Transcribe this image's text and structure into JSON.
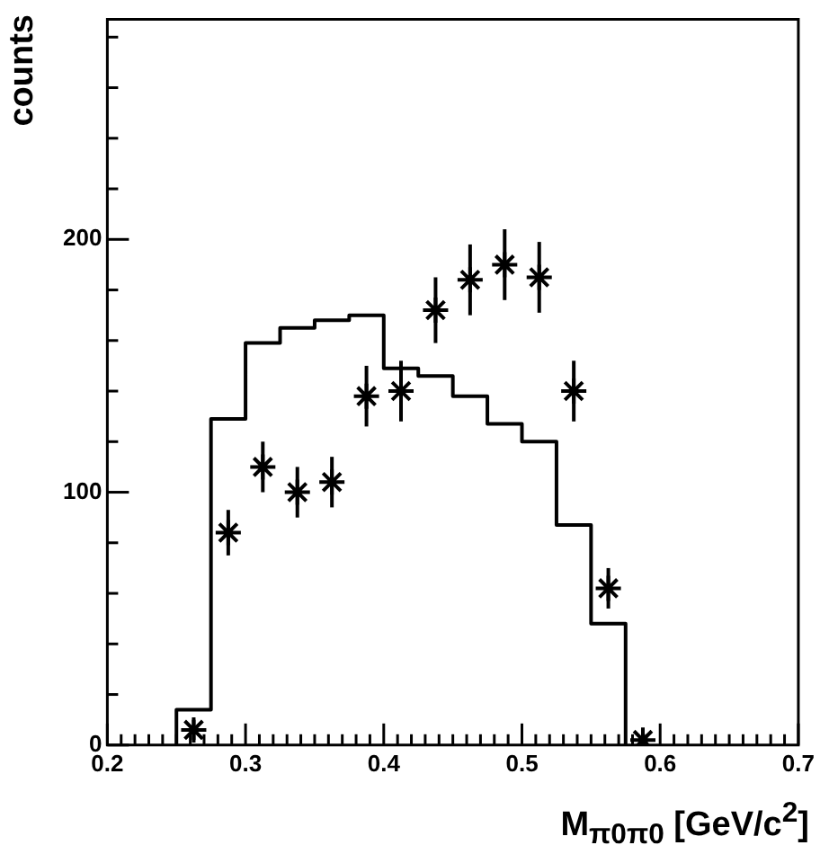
{
  "chart_data": {
    "type": "histogram",
    "xlabel": "M$_{π0π0}$ [GeV/c$^{2}$]",
    "ylabel": "counts",
    "bins": [
      0.25,
      0.275,
      0.3,
      0.325,
      0.35,
      0.375,
      0.4,
      0.425,
      0.45,
      0.475,
      0.5,
      0.525,
      0.55,
      0.575
    ],
    "values": [
      14,
      129,
      159,
      165,
      168,
      170,
      149,
      146,
      138,
      127,
      120,
      87,
      48
    ],
    "color": "#000000",
    "series": [
      {
        "type": "scatter",
        "color": "#000000",
        "x": [
          0.2625,
          0.2875,
          0.3125,
          0.3375,
          0.3625,
          0.3875,
          0.4125,
          0.4375,
          0.4625,
          0.4875,
          0.5125,
          0.5375,
          0.5625,
          0.5875
        ],
        "values": [
          6,
          84,
          110,
          100,
          104,
          138,
          140,
          172,
          184,
          190,
          185,
          140,
          62,
          2
        ],
        "errors": [
          4,
          9,
          10,
          10,
          10,
          12,
          12,
          13,
          14,
          14,
          14,
          12,
          8,
          2
        ]
      }
    ],
    "marker": "cross",
    "xlim": [
      0.2,
      0.7
    ],
    "ylim": [
      0,
      287
    ],
    "xticks": [
      0.2,
      {
        "value": 0.21,
        "label": null
      },
      {
        "value": 0.22,
        "label": null
      },
      {
        "value": 0.23,
        "label": null
      },
      {
        "value": 0.24,
        "label": null
      },
      {
        "value": 0.25,
        "label": null
      },
      {
        "value": 0.26,
        "label": null
      },
      {
        "value": 0.27,
        "label": null
      },
      {
        "value": 0.28,
        "label": null
      },
      {
        "value": 0.29,
        "label": null
      },
      0.3,
      {
        "value": 0.31,
        "label": null
      },
      {
        "value": 0.32,
        "label": null
      },
      {
        "value": 0.33,
        "label": null
      },
      {
        "value": 0.34,
        "label": null
      },
      {
        "value": 0.35,
        "label": null
      },
      {
        "value": 0.36,
        "label": null
      },
      {
        "value": 0.37,
        "label": null
      },
      {
        "value": 0.38,
        "label": null
      },
      {
        "value": 0.39,
        "label": null
      },
      0.4,
      {
        "value": 0.41,
        "label": null
      },
      {
        "value": 0.42,
        "label": null
      },
      {
        "value": 0.43,
        "label": null
      },
      {
        "value": 0.44,
        "label": null
      },
      {
        "value": 0.45,
        "label": null
      },
      {
        "value": 0.46,
        "label": null
      },
      {
        "value": 0.47,
        "label": null
      },
      {
        "value": 0.48,
        "label": null
      },
      {
        "value": 0.49,
        "label": null
      },
      0.5,
      {
        "value": 0.51,
        "label": null
      },
      {
        "value": 0.52,
        "label": null
      },
      {
        "value": 0.53,
        "label": null
      },
      {
        "value": 0.54,
        "label": null
      },
      {
        "value": 0.55,
        "label": null
      },
      {
        "value": 0.56,
        "label": null
      },
      {
        "value": 0.57,
        "label": null
      },
      {
        "value": 0.58,
        "label": null
      },
      {
        "value": 0.59,
        "label": null
      },
      0.6,
      {
        "value": 0.61,
        "label": null
      },
      {
        "value": 0.62,
        "label": null
      },
      {
        "value": 0.63,
        "label": null
      },
      {
        "value": 0.64,
        "label": null
      },
      {
        "value": 0.65,
        "label": null
      },
      {
        "value": 0.66,
        "label": null
      },
      {
        "value": 0.67,
        "label": null
      },
      {
        "value": 0.68,
        "label": null
      },
      {
        "value": 0.69,
        "label": null
      },
      0.7
    ],
    "yticks": [
      0,
      {
        "value": 20,
        "label": null
      },
      {
        "value": 40,
        "label": null
      },
      {
        "value": 60,
        "label": null
      },
      {
        "value": 80,
        "label": null
      },
      100,
      {
        "value": 120,
        "label": null
      },
      {
        "value": 140,
        "label": null
      },
      {
        "value": 160,
        "label": null
      },
      {
        "value": 180,
        "label": null
      },
      200,
      {
        "value": 220,
        "label": null
      },
      {
        "value": 240,
        "label": null
      },
      {
        "value": 260,
        "label": null
      },
      {
        "value": 280,
        "label": null
      }
    ]
  }
}
